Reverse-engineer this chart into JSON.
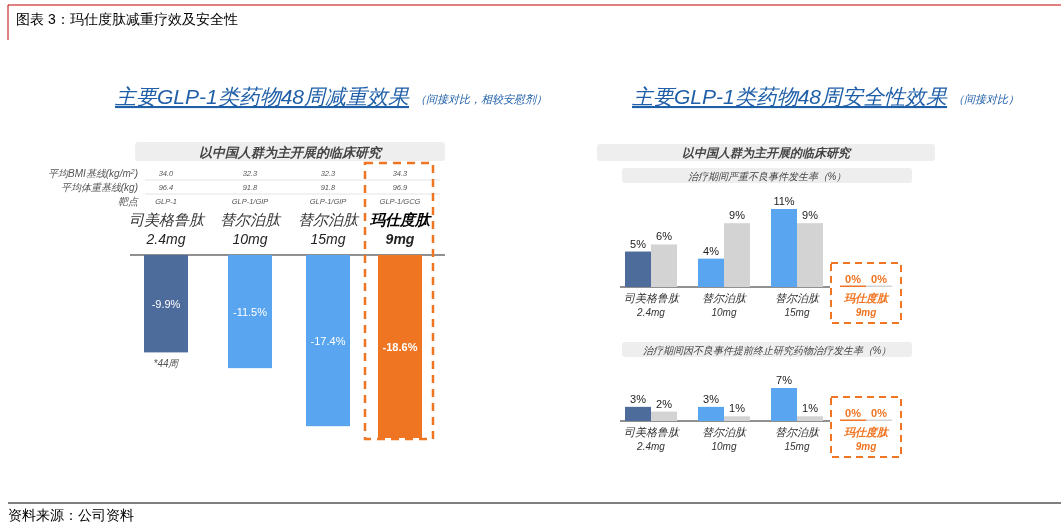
{
  "chart_data": [
    {
      "type": "bar",
      "title": "主要GLP-1类药物48周减重效果",
      "subtitle": "（间接对比，相较安慰剂）",
      "categories": [
        "司美格鲁肽 2.4mg",
        "替尔泊肽 10mg",
        "替尔泊肽 15mg",
        "玛仕度肽 9mg"
      ],
      "values": [
        -9.9,
        -11.5,
        -17.4,
        -18.6
      ],
      "value_labels": [
        "-9.9%",
        "-11.5%",
        "-17.4%",
        "-18.6%"
      ],
      "colors": [
        "#4d6c9c",
        "#5aa5f0",
        "#5aa5f0",
        "#f07522"
      ],
      "annotations": [
        "图表 3：玛仕度肽减重疗效及安全性",
        "以中国人群为主开展的临床研究",
        "平均BMI基线(kg/m$^{2}$)",
        "平均体重基线(kg)",
        "靶点",
        "34.0",
        "32.3",
        "32.3",
        "34.3",
        "96.4",
        "91.8",
        "91.8",
        "96.9",
        "GLP-1",
        "GLP-1/GIP",
        "GLP-1/GIP",
        "GLP-1/GCG",
        "*44周",
        "资料来源：公司资料"
      ]
    },
    {
      "type": "bar",
      "title": "治疗期间严重不良事件发生率（%）",
      "annotations": [
        "主要GLP-1类药物48周安全性效果",
        "（间接对比）",
        "以中国人群为主开展的临床研究"
      ],
      "categories": [
        "司美格鲁肽 2.4mg",
        "替尔泊肽 10mg",
        "替尔泊肽 15mg",
        "玛仕度肽 9mg"
      ],
      "series": [
        {
          "values": [
            5,
            4,
            11,
            0
          ],
          "value_labels": [
            "5%",
            "4%",
            "11%",
            "0%"
          ],
          "colors": [
            "#4d6c9c",
            "#5aa5f0",
            "#5aa5f0",
            "#f07522"
          ]
        },
        {
          "values": [
            6,
            9,
            9,
            0
          ],
          "value_labels": [
            "6%",
            "9%",
            "9%",
            "0%"
          ],
          "color": "#d3d3d3"
        }
      ]
    },
    {
      "type": "bar",
      "title": "治疗期间因不良事件提前终止研究药物治疗发生率（%）",
      "categories": [
        "司美格鲁肽 2.4mg",
        "替尔泊肽 10mg",
        "替尔泊肽 15mg",
        "玛仕度肽 9mg"
      ],
      "series": [
        {
          "values": [
            3,
            3,
            7,
            0
          ],
          "value_labels": [
            "3%",
            "3%",
            "7%",
            "0%"
          ],
          "colors": [
            "#4d6c9c",
            "#5aa5f0",
            "#5aa5f0",
            "#f07522"
          ]
        },
        {
          "values": [
            2,
            1,
            1,
            0
          ],
          "value_labels": [
            "2%",
            "1%",
            "1%",
            "0%"
          ],
          "color": "#d3d3d3"
        }
      ]
    }
  ]
}
